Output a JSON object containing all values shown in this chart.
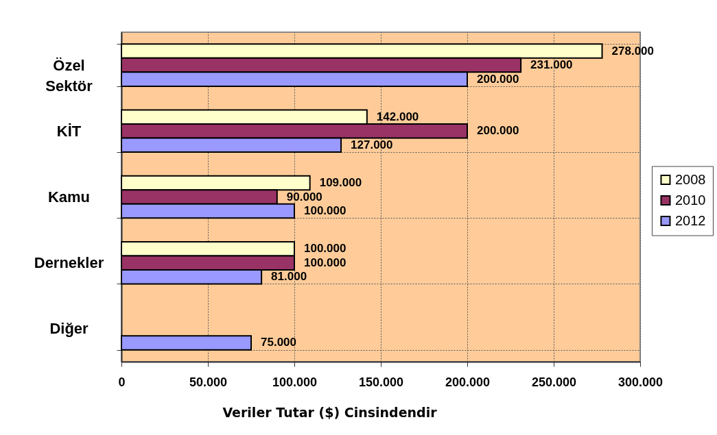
{
  "chart_data": {
    "type": "bar",
    "orientation": "horizontal",
    "categories": [
      "Özel Sektör",
      "KİT",
      "Kamu",
      "Dernekler",
      "Diğer"
    ],
    "series": [
      {
        "name": "2008",
        "color": "#ffffcc",
        "values": [
          278000,
          142000,
          109000,
          100000,
          null
        ],
        "value_labels": [
          "278.000",
          "142.000",
          "109.000",
          "100.000",
          null
        ]
      },
      {
        "name": "2010",
        "color": "#993366",
        "values": [
          231000,
          200000,
          90000,
          100000,
          null
        ],
        "value_labels": [
          "231.000",
          "200.000",
          "90.000",
          "100.000",
          null
        ]
      },
      {
        "name": "2012",
        "color": "#9999ff",
        "values": [
          200000,
          127000,
          100000,
          81000,
          75000
        ],
        "value_labels": [
          "200.000",
          "127.000",
          "100.000",
          "81.000",
          "75.000"
        ]
      }
    ],
    "xlabel": "Veriler Tutar ($) Cinsindendir",
    "xlim": [
      0,
      300000
    ],
    "xticks": [
      0,
      {
        "value": 50000,
        "label": "50.000"
      },
      {
        "value": 100000,
        "label": "100.000"
      },
      {
        "value": 150000,
        "label": "150.000"
      },
      {
        "value": 200000,
        "label": "200.000"
      },
      {
        "value": 250000,
        "label": "250.000"
      },
      {
        "value": 300000,
        "label": "300.000"
      }
    ],
    "grid": true,
    "legend": "right"
  }
}
